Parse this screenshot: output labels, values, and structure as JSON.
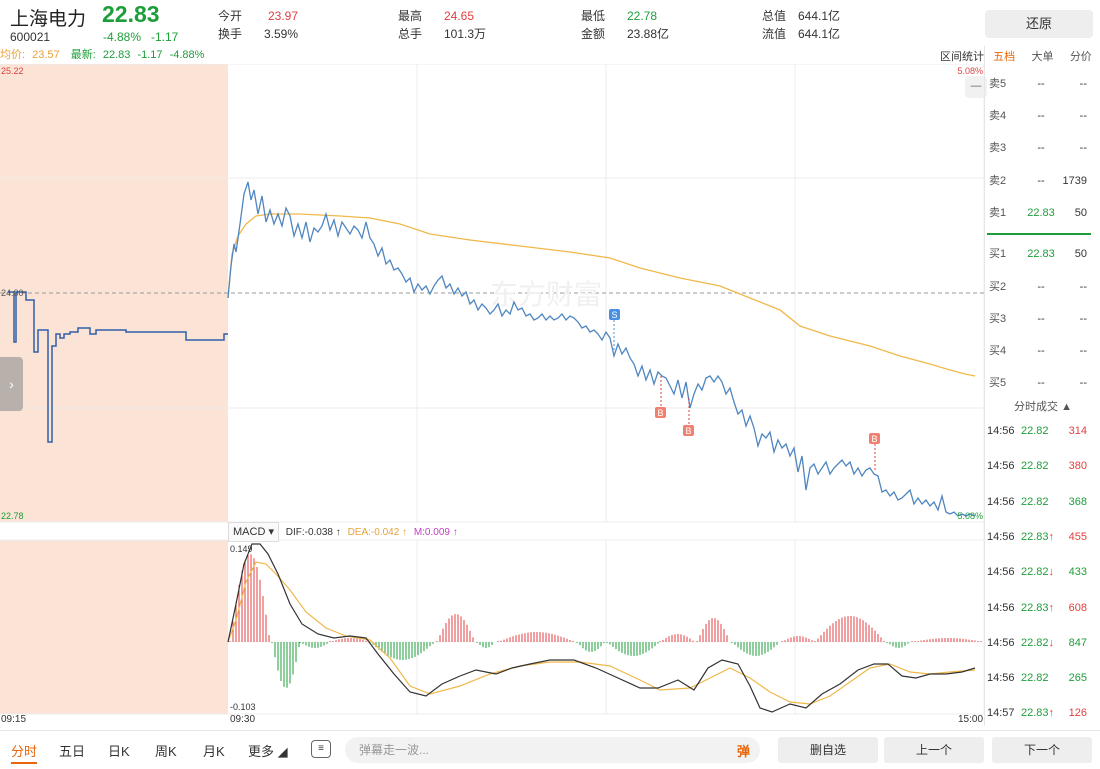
{
  "header": {
    "name": "上海电力",
    "code": "600021",
    "price": "22.83",
    "change_pct": "-4.88%",
    "change": "-1.17",
    "stats": [
      {
        "label": "今开",
        "value": "23.97",
        "color": "up"
      },
      {
        "label": "换手",
        "value": "3.59%",
        "color": "normal"
      },
      {
        "label": "最高",
        "value": "24.65",
        "color": "up"
      },
      {
        "label": "总手",
        "value": "101.3万",
        "color": "normal"
      },
      {
        "label": "最低",
        "value": "22.78",
        "color": "down"
      },
      {
        "label": "金额",
        "value": "23.88亿",
        "color": "normal"
      },
      {
        "label": "总值",
        "value": "644.1亿",
        "color": "normal"
      },
      {
        "label": "流值",
        "value": "644.1亿",
        "color": "normal"
      }
    ],
    "restore_button": "还原"
  },
  "legend": {
    "avg_label": "均价:",
    "avg_value": "23.57",
    "latest_label": "最新:",
    "latest_value": "22.83",
    "latest_change": "-1.17",
    "latest_pct": "-4.88%"
  },
  "chart": {
    "range_stat_label": "区间统计",
    "price_top": "25.22",
    "price_bottom": "22.78",
    "price_mid": "24.00",
    "pct_top": "5.08%",
    "pct_bottom": "5.08%",
    "watermark": "东方财富",
    "markers": [
      "S",
      "B",
      "B",
      "B"
    ]
  },
  "macd": {
    "selector": "MACD",
    "dif_label": "DIF:-0.038 ↑",
    "dea_label": "DEA:-0.042 ↑",
    "m_label": "M:0.009 ↑",
    "axis_top": "0.149",
    "axis_bottom": "-0.103"
  },
  "time_axis": {
    "t0": "09:15",
    "t1": "09:30",
    "t2": "15:00"
  },
  "orderbook": {
    "tabs": [
      "五档",
      "大单",
      "分价"
    ],
    "rows": [
      {
        "label": "卖5",
        "price": "--",
        "vol": "--",
        "color": "normal"
      },
      {
        "label": "卖4",
        "price": "--",
        "vol": "--",
        "color": "normal"
      },
      {
        "label": "卖3",
        "price": "--",
        "vol": "--",
        "color": "normal"
      },
      {
        "label": "卖2",
        "price": "--",
        "vol": "1739",
        "color": "normal"
      },
      {
        "label": "卖1",
        "price": "22.83",
        "vol": "50",
        "color": "down"
      },
      {
        "label": "买1",
        "price": "22.83",
        "vol": "50",
        "color": "down"
      },
      {
        "label": "买2",
        "price": "--",
        "vol": "--",
        "color": "normal"
      },
      {
        "label": "买3",
        "price": "--",
        "vol": "--",
        "color": "normal"
      },
      {
        "label": "买4",
        "price": "--",
        "vol": "--",
        "color": "normal"
      },
      {
        "label": "买5",
        "price": "--",
        "vol": "--",
        "color": "normal"
      }
    ]
  },
  "ticks": {
    "header": "分时成交 ▲",
    "rows": [
      {
        "time": "14:56",
        "price": "22.82",
        "arrow": "",
        "vol": "314",
        "color": "down",
        "vcolor": "up"
      },
      {
        "time": "14:56",
        "price": "22.82",
        "arrow": "",
        "vol": "380",
        "color": "down",
        "vcolor": "up"
      },
      {
        "time": "14:56",
        "price": "22.82",
        "arrow": "",
        "vol": "368",
        "color": "down",
        "vcolor": "down"
      },
      {
        "time": "14:56",
        "price": "22.83",
        "arrow": "↑",
        "vol": "455",
        "color": "down",
        "vcolor": "up"
      },
      {
        "time": "14:56",
        "price": "22.82",
        "arrow": "↓",
        "vol": "433",
        "color": "down",
        "vcolor": "down"
      },
      {
        "time": "14:56",
        "price": "22.83",
        "arrow": "↑",
        "vol": "608",
        "color": "down",
        "vcolor": "up"
      },
      {
        "time": "14:56",
        "price": "22.82",
        "arrow": "↓",
        "vol": "847",
        "color": "down",
        "vcolor": "down"
      },
      {
        "time": "14:56",
        "price": "22.82",
        "arrow": "",
        "vol": "265",
        "color": "down",
        "vcolor": "down"
      },
      {
        "time": "14:57",
        "price": "22.83",
        "arrow": "↑",
        "vol": "126",
        "color": "down",
        "vcolor": "up"
      }
    ]
  },
  "bottom": {
    "tabs": [
      "分时",
      "五日",
      "日K",
      "周K",
      "月K",
      "更多"
    ],
    "danmu_placeholder": "弹幕走一波...",
    "danmu_send": "弹",
    "remove_fav": "删自选",
    "prev": "上一个",
    "next": "下一个"
  },
  "colors": {
    "up": "#e04040",
    "down": "#1e9e3a",
    "price_line": "#4f86c0",
    "avg_line": "#f0b84a",
    "pre_market_bg": "#fbe3d6"
  }
}
